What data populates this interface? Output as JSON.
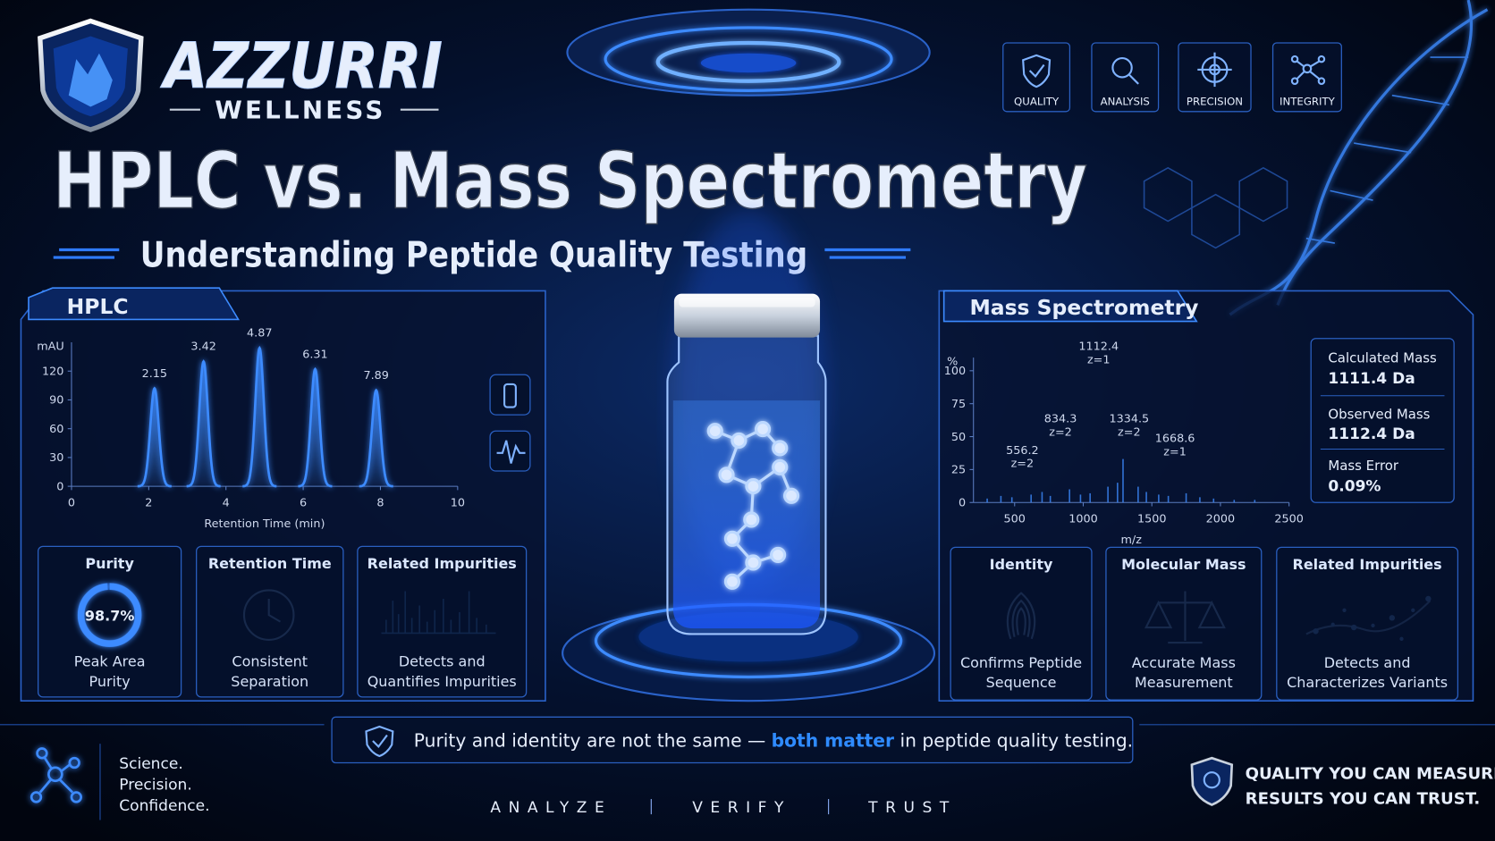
{
  "brand": {
    "name": "AZZURRI",
    "tagline": "WELLNESS"
  },
  "title": "HPLC vs. Mass Spectrometry",
  "subtitle": "Understanding Peptide Quality Testing",
  "badges": [
    "QUALITY",
    "ANALYSIS",
    "PRECISION",
    "INTEGRITY"
  ],
  "chart_data": [
    {
      "type": "line",
      "title": "HPLC",
      "ylabel": "mAU",
      "xlabel": "Retention Time (min)",
      "color": "#3d8bff",
      "xlim": [
        0,
        10
      ],
      "ylim": [
        0,
        150
      ],
      "xticks": [
        0,
        2,
        4,
        6,
        8,
        10
      ],
      "yticks": [
        0,
        30,
        60,
        90,
        120
      ],
      "x": [
        2.15,
        3.42,
        4.87,
        6.31,
        7.89
      ],
      "values": [
        102,
        130,
        144,
        122,
        100
      ]
    },
    {
      "type": "bar",
      "title": "Mass Spectrometry",
      "ylabel": "%",
      "xlabel": "m/z",
      "color": "#3d8bff",
      "xlim": [
        200,
        2500
      ],
      "ylim": [
        0,
        110
      ],
      "xticks": [
        500,
        1000,
        1500,
        2000,
        2500
      ],
      "yticks": [
        0,
        25,
        50,
        75,
        100
      ],
      "x": [
        556.2,
        834.3,
        1112.4,
        1334.5,
        1668.6
      ],
      "values": [
        21,
        45,
        100,
        45,
        30
      ],
      "z_labels": [
        "z=2",
        "z=2",
        "z=1",
        "z=2",
        "z=1"
      ],
      "minor_x": [
        300,
        400,
        480,
        620,
        700,
        760,
        900,
        980,
        1050,
        1180,
        1250,
        1290,
        1400,
        1460,
        1550,
        1620,
        1750,
        1850,
        1950,
        2100,
        2250
      ],
      "minor_values": [
        3,
        5,
        4,
        6,
        8,
        5,
        10,
        6,
        7,
        12,
        15,
        33,
        12,
        8,
        6,
        5,
        7,
        4,
        3,
        2,
        2
      ]
    }
  ],
  "hplc_cards": [
    {
      "title": "Purity",
      "value": 98.7,
      "value_label": "98.7%",
      "lines": [
        "Peak Area",
        "Purity"
      ]
    },
    {
      "title": "Retention Time",
      "lines": [
        "Consistent",
        "Separation"
      ]
    },
    {
      "title": "Related Impurities",
      "lines": [
        "Detects and",
        "Quantifies Impurities"
      ]
    }
  ],
  "mass_results": [
    {
      "label": "Calculated Mass",
      "value": "1111.4 Da"
    },
    {
      "label": "Observed Mass",
      "value": "1112.4 Da"
    },
    {
      "label": "Mass Error",
      "value": "0.09%"
    }
  ],
  "ms_cards": [
    {
      "title": "Identity",
      "lines": [
        "Confirms Peptide",
        "Sequence"
      ]
    },
    {
      "title": "Molecular Mass",
      "lines": [
        "Accurate Mass",
        "Measurement"
      ]
    },
    {
      "title": "Related Impurities",
      "lines": [
        "Detects and",
        "Characterizes Variants"
      ]
    }
  ],
  "note": {
    "before": "Purity and identity are not the same —",
    "emphasis": "both matter",
    "after": "in peptide quality testing."
  },
  "motto": [
    "Science.",
    "Precision.",
    "Confidence."
  ],
  "steps": [
    "ANALYZE",
    "VERIFY",
    "TRUST"
  ],
  "slogan": [
    "QUALITY YOU CAN MEASURE.",
    "RESULTS YOU CAN TRUST."
  ]
}
